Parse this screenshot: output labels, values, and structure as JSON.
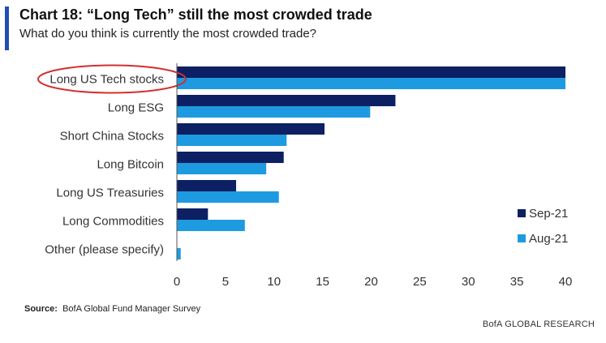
{
  "header": {
    "title": "Chart 18: “Long Tech” still the most crowded trade",
    "subtitle": "What do you think is currently the most crowded trade?"
  },
  "colors": {
    "accent": "#1f4fb5",
    "series_dark": "#0c2063",
    "series_light": "#1e9be0",
    "highlight_ring": "#d32f2f"
  },
  "chart_data": {
    "type": "bar",
    "orientation": "horizontal",
    "categories": [
      "Long US Tech stocks",
      "Long ESG",
      "Short China Stocks",
      "Long Bitcoin",
      "Long US Treasuries",
      "Long Commodities",
      "Other (please specify)"
    ],
    "series": [
      {
        "name": "Sep-21",
        "values": [
          40,
          22.5,
          15.2,
          11,
          6.1,
          3.2,
          0
        ]
      },
      {
        "name": "Aug-21",
        "values": [
          40,
          19.9,
          11.3,
          9.2,
          10.5,
          7,
          0.4
        ]
      }
    ],
    "xlim": [
      0,
      40
    ],
    "x_ticks": [
      0,
      5,
      10,
      15,
      20,
      25,
      30,
      35,
      40
    ],
    "grid": false,
    "legend_position": "bottom-right",
    "highlighted_category": "Long US Tech stocks"
  },
  "footer": {
    "source_label": "Source:",
    "source_text": "BofA Global Fund Manager Survey",
    "branding": "BofA GLOBAL RESEARCH"
  }
}
